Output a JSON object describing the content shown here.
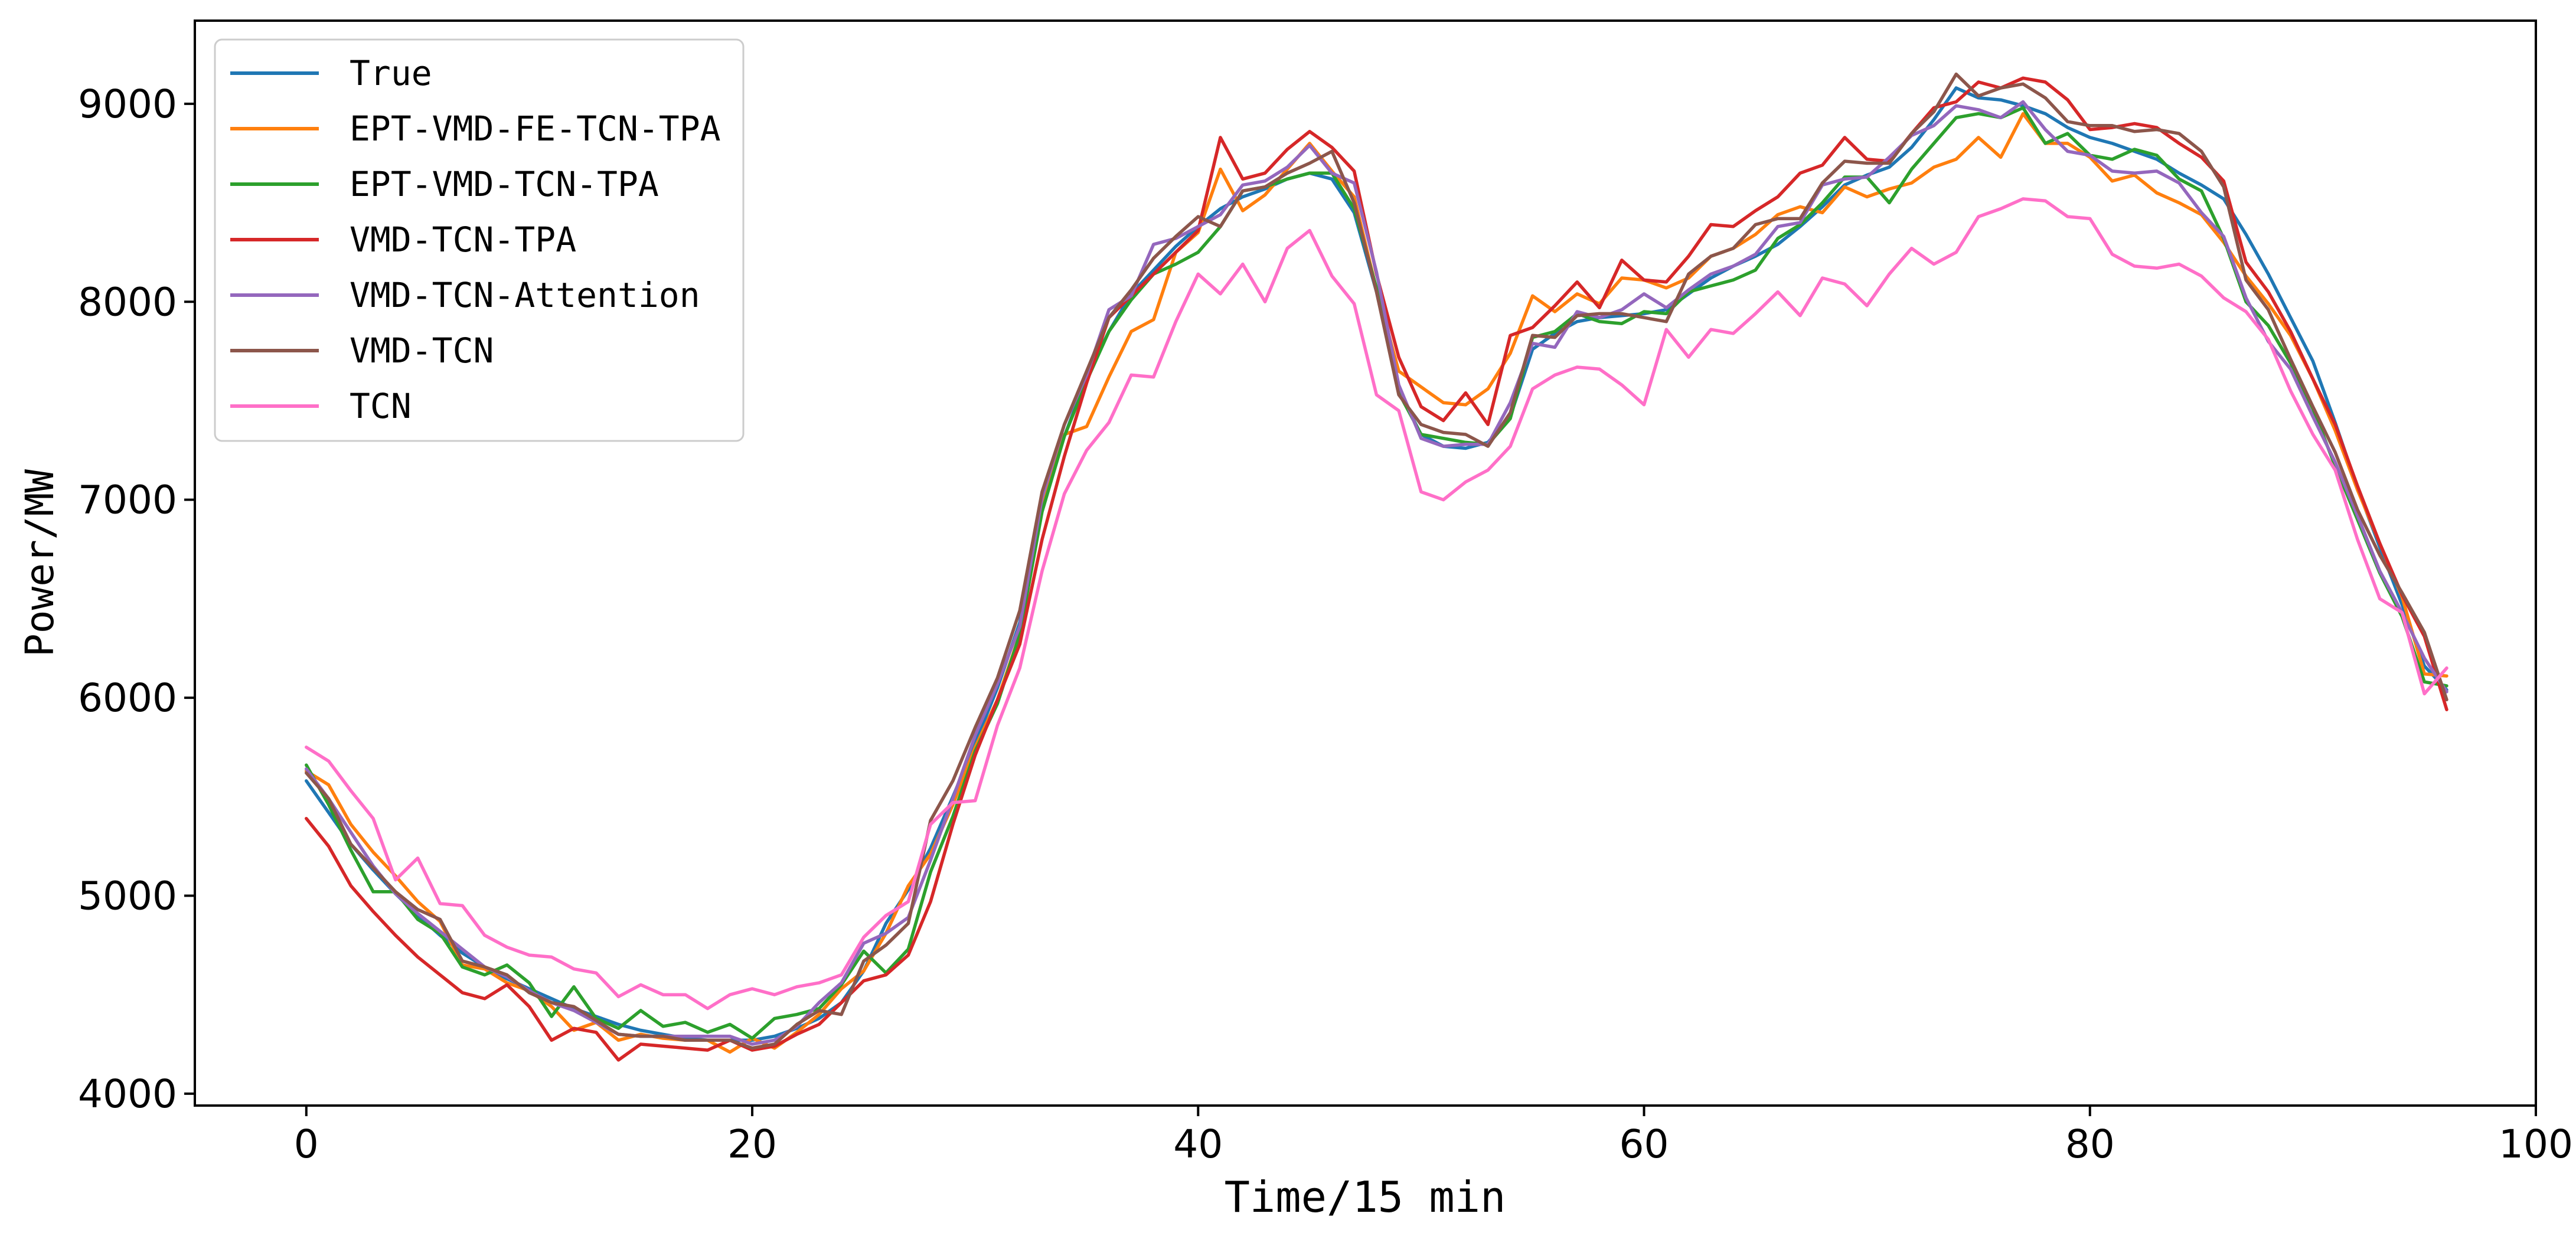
{
  "chart_data": {
    "type": "line",
    "title": "",
    "xlabel": "Time/15 min",
    "ylabel": "Power/MW",
    "xlim": [
      -5,
      100
    ],
    "ylim": [
      3940,
      9420
    ],
    "xticks": [
      0,
      20,
      40,
      60,
      80,
      100
    ],
    "yticks": [
      4000,
      5000,
      6000,
      7000,
      8000,
      9000
    ],
    "xtick_labels": [
      "0",
      "20",
      "40",
      "60",
      "80",
      "100"
    ],
    "ytick_labels": [
      "4000",
      "5000",
      "6000",
      "7000",
      "8000",
      "9000"
    ],
    "grid": false,
    "legend_position": "top-left",
    "x": [
      0,
      1,
      2,
      3,
      4,
      5,
      6,
      7,
      8,
      9,
      10,
      11,
      12,
      13,
      14,
      15,
      16,
      17,
      18,
      19,
      20,
      21,
      22,
      23,
      24,
      25,
      26,
      27,
      28,
      29,
      30,
      31,
      32,
      33,
      34,
      35,
      36,
      37,
      38,
      39,
      40,
      41,
      42,
      43,
      44,
      45,
      46,
      47,
      48,
      49,
      50,
      51,
      52,
      53,
      54,
      55,
      56,
      57,
      58,
      59,
      60,
      61,
      62,
      63,
      64,
      65,
      66,
      67,
      68,
      69,
      70,
      71,
      72,
      73,
      74,
      75,
      76,
      77,
      78,
      79,
      80,
      81,
      82,
      83,
      84,
      85,
      86,
      87,
      88,
      89,
      90,
      91,
      92,
      93,
      94,
      95,
      96
    ],
    "series": [
      {
        "name": "True",
        "color": "#1f77b4",
        "values": [
          5580,
          5420,
          5260,
          5130,
          5010,
          4900,
          4800,
          4710,
          4640,
          4580,
          4530,
          4480,
          4430,
          4390,
          4350,
          4320,
          4300,
          4280,
          4270,
          4270,
          4270,
          4290,
          4330,
          4380,
          4460,
          4620,
          4860,
          5030,
          5240,
          5500,
          5770,
          6050,
          6380,
          6980,
          7320,
          7620,
          7850,
          8040,
          8160,
          8280,
          8380,
          8470,
          8530,
          8570,
          8620,
          8650,
          8620,
          8450,
          8050,
          7550,
          7330,
          7270,
          7260,
          7290,
          7420,
          7760,
          7840,
          7900,
          7920,
          7930,
          7940,
          7960,
          8040,
          8120,
          8180,
          8230,
          8290,
          8380,
          8480,
          8590,
          8640,
          8680,
          8780,
          8920,
          9080,
          9030,
          9020,
          8990,
          8950,
          8880,
          8830,
          8800,
          8760,
          8720,
          8650,
          8590,
          8520,
          8340,
          8140,
          7920,
          7700,
          7390,
          7060,
          6760,
          6470,
          6160,
          6040
        ]
      },
      {
        "name": "EPT-VMD-FE-TCN-TPA",
        "color": "#ff7f0e",
        "values": [
          5630,
          5560,
          5360,
          5220,
          5100,
          4970,
          4870,
          4650,
          4630,
          4560,
          4520,
          4440,
          4320,
          4360,
          4270,
          4300,
          4280,
          4270,
          4270,
          4210,
          4280,
          4230,
          4310,
          4400,
          4530,
          4620,
          4810,
          5050,
          5210,
          5460,
          5750,
          5990,
          6320,
          6980,
          7330,
          7370,
          7620,
          7850,
          7910,
          8250,
          8350,
          8670,
          8460,
          8540,
          8670,
          8800,
          8660,
          8530,
          8060,
          7650,
          7570,
          7490,
          7480,
          7560,
          7740,
          8030,
          7950,
          8040,
          7990,
          8120,
          8110,
          8070,
          8120,
          8230,
          8270,
          8340,
          8440,
          8480,
          8450,
          8580,
          8530,
          8570,
          8600,
          8680,
          8720,
          8830,
          8730,
          8950,
          8800,
          8800,
          8730,
          8610,
          8640,
          8550,
          8500,
          8440,
          8300,
          8130,
          7990,
          7830,
          7610,
          7350,
          7050,
          6780,
          6510,
          6120,
          6110
        ]
      },
      {
        "name": "EPT-VMD-TCN-TPA",
        "color": "#2ca02c",
        "values": [
          5660,
          5460,
          5230,
          5020,
          5020,
          4880,
          4810,
          4640,
          4600,
          4650,
          4560,
          4390,
          4540,
          4380,
          4330,
          4420,
          4340,
          4360,
          4310,
          4350,
          4280,
          4380,
          4400,
          4430,
          4550,
          4720,
          4610,
          4730,
          5120,
          5400,
          5730,
          5970,
          6320,
          6940,
          7320,
          7600,
          7850,
          8010,
          8140,
          8190,
          8250,
          8380,
          8560,
          8580,
          8620,
          8650,
          8650,
          8470,
          8070,
          7540,
          7330,
          7310,
          7290,
          7280,
          7410,
          7820,
          7850,
          7940,
          7900,
          7890,
          7950,
          7940,
          8050,
          8080,
          8110,
          8160,
          8320,
          8390,
          8500,
          8630,
          8630,
          8500,
          8670,
          8800,
          8930,
          8950,
          8930,
          8980,
          8800,
          8850,
          8740,
          8720,
          8770,
          8740,
          8620,
          8560,
          8320,
          8000,
          7880,
          7690,
          7460,
          7170,
          6900,
          6630,
          6410,
          6080,
          6060
        ]
      },
      {
        "name": "VMD-TCN-TPA",
        "color": "#d62728",
        "values": [
          5390,
          5250,
          5050,
          4920,
          4800,
          4690,
          4600,
          4510,
          4480,
          4550,
          4440,
          4270,
          4330,
          4310,
          4170,
          4250,
          4240,
          4230,
          4220,
          4270,
          4220,
          4240,
          4300,
          4350,
          4460,
          4570,
          4600,
          4700,
          4970,
          5360,
          5710,
          5990,
          6270,
          6800,
          7220,
          7590,
          7920,
          8030,
          8140,
          8250,
          8360,
          8830,
          8620,
          8650,
          8770,
          8860,
          8780,
          8660,
          8140,
          7720,
          7470,
          7400,
          7540,
          7380,
          7830,
          7870,
          7980,
          8100,
          7970,
          8210,
          8110,
          8100,
          8230,
          8390,
          8380,
          8460,
          8530,
          8650,
          8690,
          8830,
          8720,
          8710,
          8850,
          8980,
          9010,
          9110,
          9080,
          9130,
          9110,
          9020,
          8870,
          8880,
          8900,
          8880,
          8800,
          8730,
          8610,
          8200,
          8050,
          7850,
          7610,
          7380,
          7070,
          6780,
          6520,
          6310,
          5940
        ]
      },
      {
        "name": "VMD-TCN-Attention",
        "color": "#9467bd",
        "values": [
          5640,
          5490,
          5320,
          5150,
          5010,
          4910,
          4820,
          4730,
          4640,
          4590,
          4520,
          4460,
          4420,
          4360,
          4300,
          4290,
          4290,
          4290,
          4290,
          4290,
          4250,
          4270,
          4340,
          4460,
          4560,
          4760,
          4810,
          4890,
          5180,
          5490,
          5810,
          6070,
          6360,
          7010,
          7380,
          7630,
          7960,
          8030,
          8290,
          8320,
          8380,
          8440,
          8590,
          8610,
          8680,
          8790,
          8650,
          8600,
          8150,
          7580,
          7310,
          7270,
          7280,
          7280,
          7490,
          7790,
          7770,
          7950,
          7920,
          7960,
          8040,
          7970,
          8060,
          8140,
          8180,
          8240,
          8380,
          8400,
          8590,
          8620,
          8630,
          8730,
          8840,
          8890,
          8990,
          8970,
          8930,
          9010,
          8870,
          8760,
          8740,
          8660,
          8650,
          8660,
          8600,
          8450,
          8330,
          8020,
          7800,
          7660,
          7420,
          7190,
          6920,
          6640,
          6430,
          6200,
          6030
        ]
      },
      {
        "name": "VMD-TCN",
        "color": "#8c564b",
        "values": [
          5620,
          5490,
          5260,
          5140,
          5020,
          4930,
          4880,
          4670,
          4640,
          4600,
          4510,
          4460,
          4440,
          4370,
          4300,
          4290,
          4290,
          4270,
          4270,
          4270,
          4230,
          4250,
          4350,
          4420,
          4400,
          4670,
          4750,
          4860,
          5380,
          5580,
          5850,
          6100,
          6440,
          7040,
          7380,
          7650,
          7920,
          8060,
          8220,
          8330,
          8430,
          8380,
          8560,
          8580,
          8650,
          8700,
          8760,
          8500,
          8050,
          7530,
          7380,
          7340,
          7330,
          7270,
          7440,
          7830,
          7820,
          7930,
          7940,
          7940,
          7920,
          7900,
          8140,
          8230,
          8270,
          8390,
          8420,
          8420,
          8600,
          8710,
          8700,
          8700,
          8850,
          8960,
          9150,
          9040,
          9080,
          9100,
          9030,
          8910,
          8890,
          8890,
          8860,
          8870,
          8850,
          8760,
          8580,
          8110,
          7960,
          7710,
          7470,
          7240,
          6950,
          6720,
          6530,
          6330,
          5990
        ]
      },
      {
        "name": "TCN",
        "color": "#ff6fc8",
        "values": [
          5750,
          5680,
          5530,
          5390,
          5080,
          5190,
          4960,
          4950,
          4800,
          4740,
          4700,
          4690,
          4630,
          4610,
          4490,
          4550,
          4500,
          4500,
          4430,
          4500,
          4530,
          4500,
          4540,
          4560,
          4600,
          4790,
          4900,
          4970,
          5360,
          5470,
          5480,
          5860,
          6150,
          6640,
          7030,
          7250,
          7390,
          7630,
          7620,
          7900,
          8140,
          8040,
          8190,
          8000,
          8270,
          8360,
          8130,
          7990,
          7530,
          7450,
          7040,
          7000,
          7090,
          7150,
          7270,
          7560,
          7630,
          7670,
          7660,
          7580,
          7480,
          7860,
          7720,
          7860,
          7840,
          7940,
          8050,
          7930,
          8120,
          8090,
          7980,
          8140,
          8270,
          8190,
          8250,
          8430,
          8470,
          8520,
          8510,
          8430,
          8420,
          8240,
          8180,
          8170,
          8190,
          8130,
          8020,
          7950,
          7810,
          7550,
          7330,
          7150,
          6800,
          6500,
          6430,
          6020,
          6150
        ]
      }
    ]
  }
}
